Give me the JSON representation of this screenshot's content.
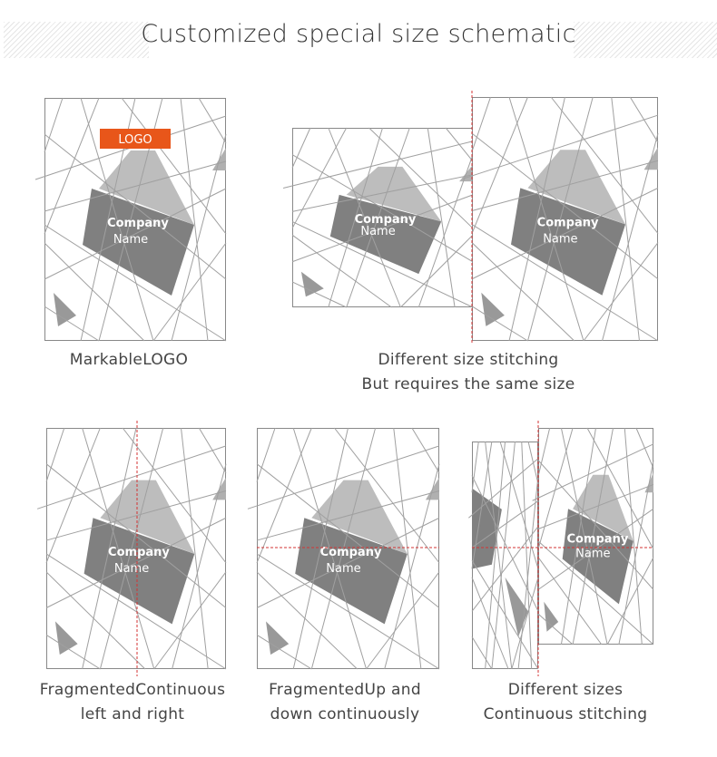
{
  "title": "Customized special size schematic",
  "card": {
    "company": "Company",
    "name": "Name",
    "logo": "LOGO"
  },
  "captions": {
    "markable": "MarkableLOGO",
    "different_size_1": "Different size stitching",
    "different_size_2": "But requires the same size",
    "fragmented_lr_1": "FragmentedContinuous",
    "fragmented_lr_2": "left and right",
    "fragmented_ud_1": "FragmentedUp and",
    "fragmented_ud_2": "down continuously",
    "different_sizes_1": "Different sizes",
    "different_sizes_2": "Continuous stitching"
  },
  "colors": {
    "logo_bg": "#e8561a",
    "dashed_line": "#d33333",
    "dark_shape": "#808080",
    "light_shape": "#bdbdbd"
  }
}
